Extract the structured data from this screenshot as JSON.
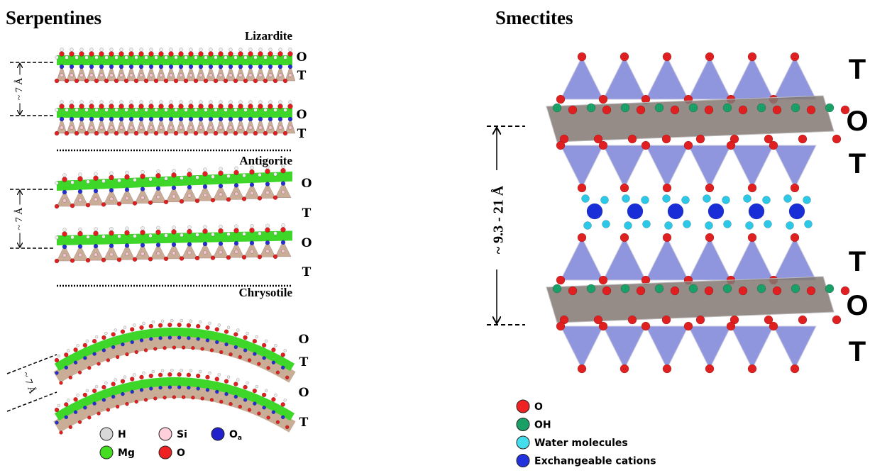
{
  "serpentines": {
    "title": "Serpentines",
    "minerals": [
      {
        "name": "Lizardite",
        "spacing": "~ 7 Å",
        "layers": [
          "O",
          "T",
          "O",
          "T"
        ]
      },
      {
        "name": "Antigorite",
        "spacing": "~ 7 Å",
        "layers": [
          "O",
          "T",
          "O",
          "T"
        ]
      },
      {
        "name": "Chrysotile",
        "spacing": "~ 7 Å",
        "layers": [
          "O",
          "T",
          "O",
          "T"
        ]
      }
    ],
    "legend": [
      {
        "label": "H"
      },
      {
        "label": "Si"
      },
      {
        "label": "O",
        "subscript": "a"
      },
      {
        "label": "Mg"
      },
      {
        "label": "O"
      }
    ]
  },
  "smectites": {
    "title": "Smectites",
    "spacing": "~ 9.3 - 21 Å",
    "layers": [
      "T",
      "O",
      "T",
      "T",
      "O",
      "T"
    ],
    "legend": [
      {
        "label": "O"
      },
      {
        "label": "OH"
      },
      {
        "label": "Water molecules"
      },
      {
        "label": "Exchangeable cations"
      }
    ]
  }
}
